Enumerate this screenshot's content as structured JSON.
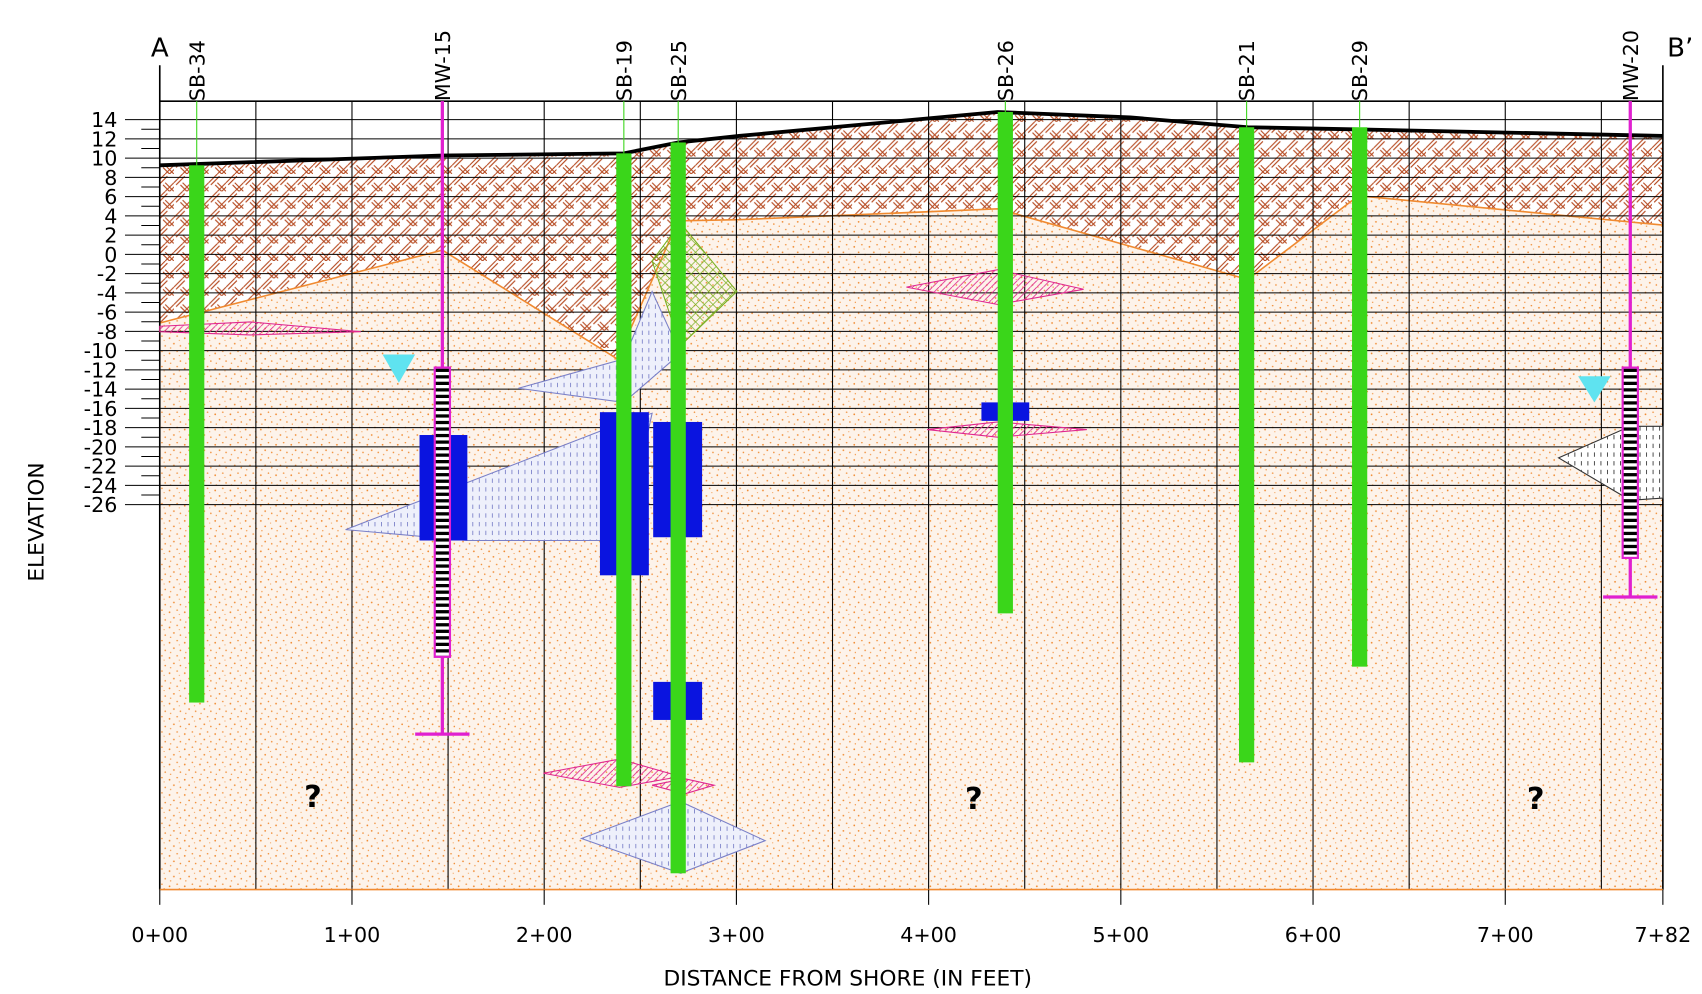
{
  "section_marks": {
    "left": "A",
    "right": "B’"
  },
  "axes": {
    "y_label": "ELEVATION",
    "x_label": "DISTANCE FROM SHORE (IN FEET)",
    "y_ticks": [
      "14",
      "12",
      "10",
      "8",
      "6",
      "4",
      "2",
      "0",
      "-2",
      "-4",
      "-6",
      "-8",
      "-10",
      "-12",
      "-14",
      "-16",
      "-18",
      "-20",
      "-22",
      "-24",
      "-26"
    ],
    "x_ticks": [
      "0+00",
      "1+00",
      "2+00",
      "3+00",
      "4+00",
      "5+00",
      "6+00",
      "7+00",
      "7+82"
    ]
  },
  "borings": [
    {
      "label": "SB-34"
    },
    {
      "label": "MW-15"
    },
    {
      "label": "SB-19"
    },
    {
      "label": "SB-25"
    },
    {
      "label": "SB-26"
    },
    {
      "label": "SB-21"
    },
    {
      "label": "SB-29"
    },
    {
      "label": "MW-20"
    }
  ],
  "unknown_markers": [
    "?",
    "?",
    "?"
  ]
}
